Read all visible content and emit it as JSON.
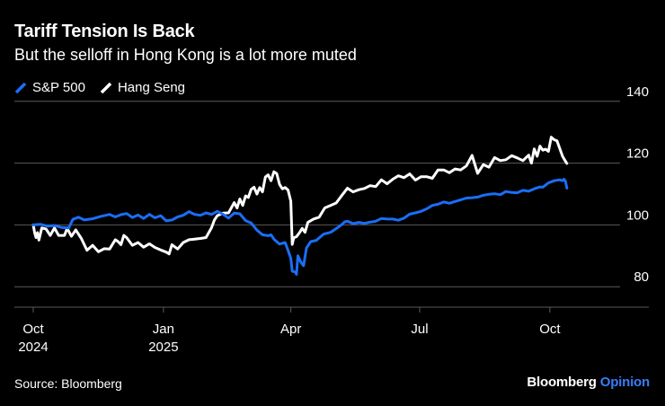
{
  "header": {
    "title": "Tariff Tension Is Back",
    "subtitle": "But the selloff in Hong Kong is a lot more muted"
  },
  "legend": [
    {
      "label": "S&P 500",
      "color": "#1a6ef5"
    },
    {
      "label": "Hang Seng",
      "color": "#ffffff"
    }
  ],
  "footer": {
    "source": "Source: Bloomberg",
    "brand_name": "Bloomberg",
    "brand_suffix": "Opinion"
  },
  "colors": {
    "background": "#000000",
    "grid": "#5a5a5a",
    "sp500": "#1a6ef5",
    "hangseng": "#ffffff",
    "brand_accent": "#3a7df7"
  },
  "chart_data": {
    "type": "line",
    "title": "Tariff Tension Is Back",
    "subtitle": "But the selloff in Hong Kong is a lot more muted",
    "xlabel": "",
    "ylabel": "",
    "ylim": [
      78,
      142
    ],
    "xlim": [
      0,
      379
    ],
    "yticks": [
      80,
      100,
      120,
      140
    ],
    "xticks": [
      {
        "day": 0,
        "line1": "Oct",
        "line2": "2024"
      },
      {
        "day": 92,
        "line1": "Jan",
        "line2": "2025"
      },
      {
        "day": 182,
        "line1": "Apr",
        "line2": ""
      },
      {
        "day": 273,
        "line1": "Jul",
        "line2": ""
      },
      {
        "day": 365,
        "line1": "Oct",
        "line2": ""
      }
    ],
    "grid": true,
    "legend_position": "top-left",
    "x_unit": "days since Oct 1, 2024",
    "series": [
      {
        "name": "S&P 500",
        "points": [
          [
            0,
            100
          ],
          [
            5,
            100.2
          ],
          [
            10,
            99.6
          ],
          [
            15,
            99.8
          ],
          [
            20,
            99.2
          ],
          [
            25,
            99
          ],
          [
            28,
            101.8
          ],
          [
            32,
            102.5
          ],
          [
            36,
            101.6
          ],
          [
            42,
            102
          ],
          [
            48,
            102.8
          ],
          [
            54,
            103.4
          ],
          [
            58,
            102.6
          ],
          [
            62,
            103.3
          ],
          [
            66,
            103.7
          ],
          [
            70,
            102.4
          ],
          [
            74,
            103.2
          ],
          [
            78,
            102.1
          ],
          [
            82,
            103.4
          ],
          [
            86,
            102.3
          ],
          [
            90,
            103
          ],
          [
            94,
            101.3
          ],
          [
            98,
            101.6
          ],
          [
            102,
            102.6
          ],
          [
            106,
            103.1
          ],
          [
            110,
            104.3
          ],
          [
            114,
            103.4
          ],
          [
            118,
            103.1
          ],
          [
            122,
            103.9
          ],
          [
            126,
            103.4
          ],
          [
            130,
            104.4
          ],
          [
            134,
            103.5
          ],
          [
            138,
            102.2
          ],
          [
            142,
            103.8
          ],
          [
            146,
            103.6
          ],
          [
            150,
            101.4
          ],
          [
            154,
            100.6
          ],
          [
            158,
            98.3
          ],
          [
            162,
            96.8
          ],
          [
            166,
            96.5
          ],
          [
            168,
            96.8
          ],
          [
            170,
            95.4
          ],
          [
            174,
            93.8
          ],
          [
            178,
            94.3
          ],
          [
            180,
            91.8
          ],
          [
            182,
            89.2
          ],
          [
            183,
            85
          ],
          [
            185,
            84.8
          ],
          [
            186,
            84
          ],
          [
            187,
            90
          ],
          [
            189,
            88
          ],
          [
            191,
            86.8
          ],
          [
            193,
            92.5
          ],
          [
            196,
            94.6
          ],
          [
            200,
            95
          ],
          [
            205,
            97
          ],
          [
            210,
            97.6
          ],
          [
            214,
            98.8
          ],
          [
            218,
            100.1
          ],
          [
            220,
            101
          ],
          [
            222,
            101.2
          ],
          [
            226,
            100.4
          ],
          [
            230,
            100.8
          ],
          [
            234,
            100.5
          ],
          [
            238,
            100.9
          ],
          [
            242,
            101.2
          ],
          [
            246,
            102.1
          ],
          [
            250,
            101.9
          ],
          [
            254,
            101.9
          ],
          [
            258,
            101.5
          ],
          [
            262,
            102.2
          ],
          [
            266,
            103.5
          ],
          [
            270,
            103.9
          ],
          [
            274,
            104.4
          ],
          [
            278,
            105.2
          ],
          [
            282,
            106.3
          ],
          [
            286,
            106.7
          ],
          [
            290,
            107.4
          ],
          [
            294,
            107
          ],
          [
            298,
            107.6
          ],
          [
            302,
            108.1
          ],
          [
            306,
            108.7
          ],
          [
            310,
            108.8
          ],
          [
            314,
            109
          ],
          [
            318,
            109.6
          ],
          [
            322,
            109.9
          ],
          [
            326,
            110.1
          ],
          [
            330,
            109.8
          ],
          [
            334,
            110.8
          ],
          [
            338,
            110.5
          ],
          [
            342,
            110.4
          ],
          [
            346,
            111.2
          ],
          [
            350,
            110.9
          ],
          [
            354,
            111.7
          ],
          [
            358,
            112.3
          ],
          [
            360,
            112.2
          ],
          [
            364,
            113.6
          ],
          [
            368,
            114.3
          ],
          [
            372,
            114.6
          ],
          [
            374,
            114.3
          ],
          [
            375,
            114.8
          ],
          [
            376,
            114.2
          ],
          [
            377,
            111.9
          ]
        ]
      },
      {
        "name": "Hang Seng",
        "points": [
          [
            0,
            100
          ],
          [
            1,
            97.4
          ],
          [
            2,
            95.9
          ],
          [
            3,
            97.5
          ],
          [
            4,
            95.1
          ],
          [
            6,
            99
          ],
          [
            9,
            98.7
          ],
          [
            12,
            96.6
          ],
          [
            15,
            99
          ],
          [
            18,
            96.6
          ],
          [
            22,
            96.6
          ],
          [
            24,
            98.9
          ],
          [
            27,
            96.3
          ],
          [
            30,
            98.4
          ],
          [
            34,
            95.6
          ],
          [
            38,
            91.8
          ],
          [
            42,
            93.4
          ],
          [
            46,
            91.3
          ],
          [
            50,
            92.3
          ],
          [
            54,
            92.2
          ],
          [
            58,
            95.2
          ],
          [
            60,
            94.6
          ],
          [
            62,
            93.6
          ],
          [
            64,
            96.6
          ],
          [
            66,
            95.9
          ],
          [
            70,
            93.4
          ],
          [
            74,
            94.3
          ],
          [
            78,
            92.8
          ],
          [
            82,
            93.9
          ],
          [
            86,
            92.7
          ],
          [
            90,
            91.9
          ],
          [
            94,
            91.2
          ],
          [
            96,
            90.6
          ],
          [
            98,
            93.6
          ],
          [
            102,
            92.2
          ],
          [
            106,
            94.3
          ],
          [
            110,
            95.2
          ],
          [
            114,
            95.4
          ],
          [
            118,
            95.6
          ],
          [
            122,
            95.9
          ],
          [
            126,
            99.1
          ],
          [
            128,
            101.6
          ],
          [
            130,
            103
          ],
          [
            134,
            103.8
          ],
          [
            138,
            103.9
          ],
          [
            142,
            107.2
          ],
          [
            144,
            105.5
          ],
          [
            146,
            108.4
          ],
          [
            148,
            106.3
          ],
          [
            150,
            109.4
          ],
          [
            152,
            108.9
          ],
          [
            154,
            111.5
          ],
          [
            156,
            112.2
          ],
          [
            158,
            110
          ],
          [
            160,
            112.1
          ],
          [
            162,
            110.7
          ],
          [
            164,
            115.5
          ],
          [
            166,
            116.2
          ],
          [
            168,
            114.3
          ],
          [
            170,
            117.2
          ],
          [
            172,
            116.6
          ],
          [
            174,
            113.1
          ],
          [
            176,
            111.7
          ],
          [
            178,
            112.1
          ],
          [
            180,
            111.3
          ],
          [
            182,
            107.7
          ],
          [
            183,
            93.7
          ],
          [
            184,
            95.8
          ],
          [
            186,
            96.2
          ],
          [
            188,
            97.4
          ],
          [
            190,
            98.9
          ],
          [
            192,
            97.6
          ],
          [
            194,
            100.8
          ],
          [
            198,
            101.9
          ],
          [
            202,
            102.5
          ],
          [
            206,
            105.5
          ],
          [
            210,
            106.3
          ],
          [
            214,
            107.1
          ],
          [
            218,
            109.5
          ],
          [
            222,
            111.9
          ],
          [
            226,
            110.7
          ],
          [
            230,
            111.4
          ],
          [
            234,
            111.8
          ],
          [
            238,
            112.7
          ],
          [
            242,
            112.4
          ],
          [
            246,
            114.6
          ],
          [
            250,
            113.3
          ],
          [
            254,
            114.8
          ],
          [
            258,
            115.9
          ],
          [
            262,
            115.3
          ],
          [
            266,
            116.5
          ],
          [
            270,
            114.5
          ],
          [
            274,
            115.6
          ],
          [
            278,
            115.6
          ],
          [
            282,
            115.1
          ],
          [
            286,
            117.8
          ],
          [
            290,
            117.8
          ],
          [
            294,
            116.9
          ],
          [
            298,
            118.1
          ],
          [
            302,
            117.8
          ],
          [
            306,
            119.1
          ],
          [
            310,
            122.5
          ],
          [
            314,
            116.7
          ],
          [
            318,
            119.5
          ],
          [
            322,
            118.7
          ],
          [
            326,
            121.8
          ],
          [
            330,
            120.8
          ],
          [
            334,
            121.1
          ],
          [
            338,
            122.4
          ],
          [
            342,
            121.7
          ],
          [
            346,
            120.8
          ],
          [
            350,
            122.6
          ],
          [
            352,
            120
          ],
          [
            354,
            124.6
          ],
          [
            356,
            122.2
          ],
          [
            358,
            125.5
          ],
          [
            360,
            124.2
          ],
          [
            362,
            124.5
          ],
          [
            364,
            123.8
          ],
          [
            366,
            128.4
          ],
          [
            368,
            127.6
          ],
          [
            370,
            127.2
          ],
          [
            372,
            124.7
          ],
          [
            374,
            122.2
          ],
          [
            376,
            120.6
          ],
          [
            377,
            119.9
          ]
        ]
      }
    ]
  }
}
